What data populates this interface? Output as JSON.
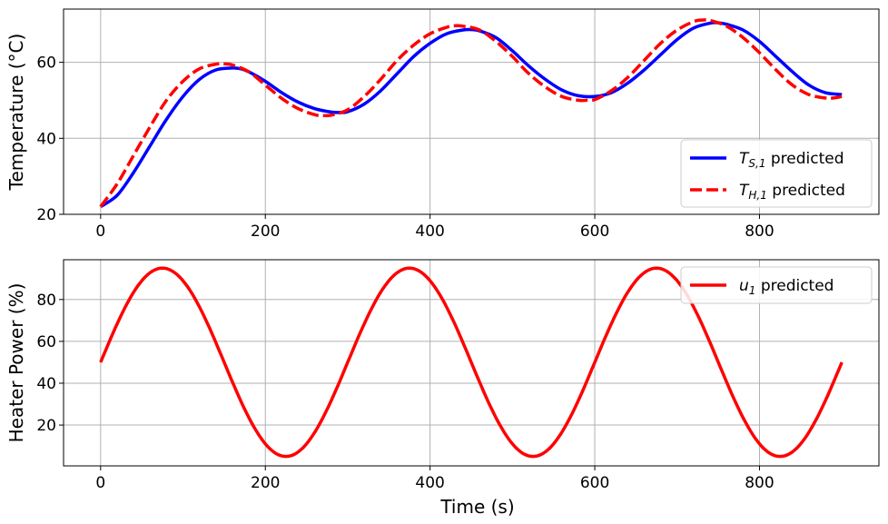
{
  "chart_data": [
    {
      "type": "line",
      "panel": "top",
      "xlabel": "",
      "ylabel": "Temperature (°C)",
      "xlim": [
        -45,
        945
      ],
      "ylim": [
        20,
        74
      ],
      "xticks": [
        0,
        200,
        400,
        600,
        800
      ],
      "yticks": [
        20,
        40,
        60
      ],
      "grid": true,
      "legend_position": "lower-right",
      "series": [
        {
          "name_main": "T",
          "name_sub": "S,1",
          "name_suffix": " predicted",
          "color": "#0000ff",
          "style": "solid",
          "x": [
            0,
            20,
            40,
            60,
            80,
            100,
            120,
            140,
            160,
            170,
            180,
            200,
            220,
            240,
            260,
            280,
            290,
            300,
            320,
            340,
            360,
            380,
            400,
            420,
            440,
            450,
            460,
            480,
            500,
            520,
            540,
            560,
            580,
            600,
            620,
            640,
            660,
            680,
            700,
            720,
            740,
            750,
            760,
            780,
            800,
            820,
            840,
            860,
            880,
            900
          ],
          "y": [
            22,
            25,
            31,
            38,
            45,
            51,
            55.5,
            58,
            58.5,
            58.3,
            57.5,
            55,
            52,
            49.5,
            47.8,
            46.9,
            46.8,
            47,
            49,
            52.5,
            57,
            61.5,
            65,
            67.5,
            68.5,
            68.6,
            68.3,
            66.5,
            63,
            59,
            55.5,
            52.7,
            51.2,
            51,
            52,
            54.5,
            58,
            62,
            66,
            69,
            70.3,
            70.4,
            70,
            68.5,
            65.5,
            61.5,
            57.5,
            54,
            52,
            51.5
          ]
        },
        {
          "name_main": "T",
          "name_sub": "H,1",
          "name_suffix": " predicted",
          "color": "#ff0000",
          "style": "dashed",
          "x": [
            0,
            20,
            40,
            60,
            80,
            100,
            120,
            140,
            150,
            160,
            180,
            200,
            220,
            240,
            260,
            270,
            280,
            300,
            320,
            340,
            360,
            380,
            400,
            420,
            430,
            440,
            460,
            480,
            500,
            520,
            540,
            560,
            580,
            590,
            600,
            620,
            640,
            660,
            680,
            700,
            720,
            730,
            740,
            760,
            780,
            800,
            820,
            840,
            860,
            880,
            890,
            900
          ],
          "y": [
            22,
            28,
            35.5,
            43,
            50,
            55,
            58.3,
            59.5,
            59.6,
            59.3,
            57.5,
            54,
            50.5,
            47.8,
            46.2,
            46,
            46.1,
            47.5,
            51,
            55.5,
            60.5,
            64.5,
            67.5,
            69.2,
            69.6,
            69.5,
            68.5,
            65.5,
            61.5,
            57,
            53.5,
            51,
            50,
            50,
            50.2,
            52.5,
            56,
            60.5,
            65,
            68.5,
            70.7,
            71.1,
            71,
            69.5,
            66.5,
            62.5,
            58,
            54,
            51.5,
            50.6,
            50.6,
            51
          ]
        }
      ]
    },
    {
      "type": "line",
      "panel": "bottom",
      "xlabel": "Time (s)",
      "ylabel": "Heater Power (%)",
      "xlim": [
        -45,
        945
      ],
      "ylim": [
        0.5,
        99
      ],
      "xticks": [
        0,
        200,
        400,
        600,
        800
      ],
      "yticks": [
        20,
        40,
        60,
        80
      ],
      "grid": true,
      "legend_position": "upper-right",
      "series": [
        {
          "name_main": "u",
          "name_sub": "1",
          "name_suffix": " predicted",
          "color": "#ff0000",
          "style": "solid",
          "function": "50 + 45*sin(2*pi*t/300)",
          "t_range": [
            0,
            900
          ]
        }
      ]
    }
  ]
}
